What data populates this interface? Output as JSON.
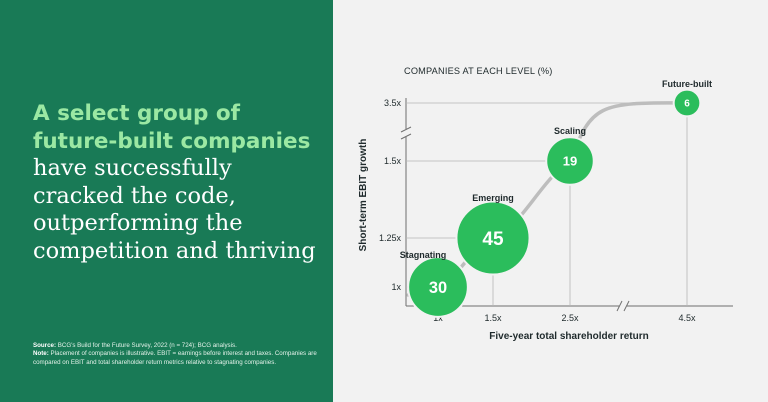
{
  "headline": {
    "accent": "A select group of future-built companies",
    "rest": "have successfully cracked the code, outperforming the competition and thriving"
  },
  "footnote": {
    "source_label": "Source:",
    "source_text": "BCG's Build for the Future Survey, 2022 (n = 724); BCG analysis.",
    "note_label": "Note:",
    "note_text": "Placement of companies is illustrative. EBIT = earnings before interest and taxes. Companies are compared on EBIT and total shareholder return metrics relative to stagnating companies."
  },
  "colors": {
    "left_panel": "#197a56",
    "accent_text": "#9be8a3",
    "bubble": "#2bbd5c",
    "curve": "#bdbdbd",
    "background": "#f2f2f2"
  },
  "chart_data": {
    "type": "scatter",
    "title": "COMPANIES AT EACH LEVEL (%)",
    "xlabel": "Five-year total shareholder return",
    "ylabel": "Short-term EBIT growth",
    "x_ticks": [
      "1x",
      "1.5x",
      "2.5x",
      "4.5x"
    ],
    "y_ticks": [
      "1x",
      "1.25x",
      "1.5x",
      "3.5x"
    ],
    "axis_breaks": [
      "x",
      "y"
    ],
    "grid": false,
    "points": [
      {
        "label": "Stagnating",
        "x": 1.0,
        "y": 1.0,
        "value": 30
      },
      {
        "label": "Emerging",
        "x": 1.5,
        "y": 1.25,
        "value": 45
      },
      {
        "label": "Scaling",
        "x": 2.5,
        "y": 1.5,
        "value": 19
      },
      {
        "label": "Future-built",
        "x": 4.5,
        "y": 3.5,
        "value": 6
      }
    ]
  }
}
